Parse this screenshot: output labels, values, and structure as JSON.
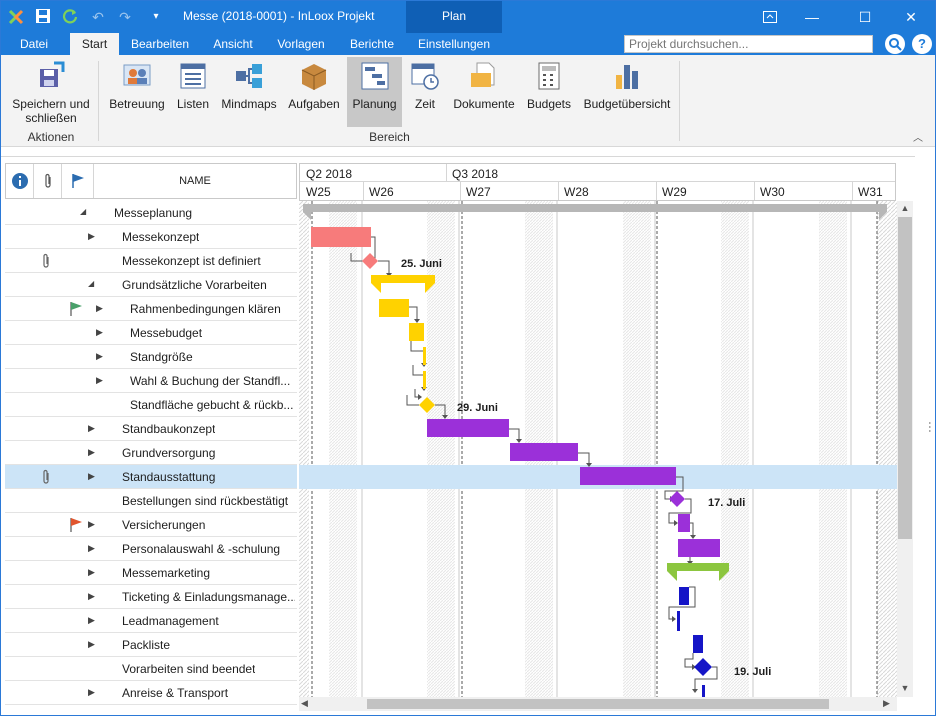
{
  "window": {
    "title": "Messe (2018-0001) - InLoox Projekt",
    "context_tab_group": "Plan"
  },
  "tabs": [
    "Datei",
    "Start",
    "Bearbeiten",
    "Ansicht",
    "Vorlagen",
    "Berichte",
    "Einstellungen"
  ],
  "active_tab": "Start",
  "search": {
    "placeholder": "Projekt durchsuchen..."
  },
  "ribbon": {
    "buttons": {
      "save": "Speichern und schließen",
      "betreuung": "Betreuung",
      "listen": "Listen",
      "mindmaps": "Mindmaps",
      "aufgaben": "Aufgaben",
      "planung": "Planung",
      "zeit": "Zeit",
      "dokumente": "Dokumente",
      "budgets": "Budgets",
      "budgetuebersicht": "Budgetübersicht"
    },
    "groups": {
      "aktionen": "Aktionen",
      "bereich": "Bereich"
    }
  },
  "grid": {
    "name_header": "NAME",
    "rows": [
      {
        "name": "Messeplanung",
        "indent": 0,
        "expander": "expanded",
        "icon": ""
      },
      {
        "name": "Messekonzept",
        "indent": 1,
        "expander": "collapsed",
        "icon": ""
      },
      {
        "name": "Messekonzept ist definiert",
        "indent": 1,
        "expander": "",
        "icon": "paperclip"
      },
      {
        "name": "Grundsätzliche Vorarbeiten",
        "indent": 1,
        "expander": "expanded",
        "icon": ""
      },
      {
        "name": "Rahmenbedingungen klären",
        "indent": 2,
        "expander": "collapsed",
        "icon": "flag-green"
      },
      {
        "name": "Messebudget",
        "indent": 2,
        "expander": "collapsed",
        "icon": ""
      },
      {
        "name": "Standgröße",
        "indent": 2,
        "expander": "collapsed",
        "icon": ""
      },
      {
        "name": "Wahl & Buchung der Standfl...",
        "indent": 2,
        "expander": "collapsed",
        "icon": ""
      },
      {
        "name": "Standfläche gebucht & rückb...",
        "indent": 2,
        "expander": "",
        "icon": ""
      },
      {
        "name": "Standbaukonzept",
        "indent": 1,
        "expander": "collapsed",
        "icon": ""
      },
      {
        "name": "Grundversorgung",
        "indent": 1,
        "expander": "collapsed",
        "icon": ""
      },
      {
        "name": "Standausstattung",
        "indent": 1,
        "expander": "collapsed",
        "icon": "paperclip",
        "selected": true
      },
      {
        "name": "Bestellungen sind rückbestätigt",
        "indent": 1,
        "expander": "",
        "icon": ""
      },
      {
        "name": "Versicherungen",
        "indent": 1,
        "expander": "collapsed",
        "icon": "flag-red"
      },
      {
        "name": "Personalauswahl & -schulung",
        "indent": 1,
        "expander": "collapsed",
        "icon": ""
      },
      {
        "name": "Messemarketing",
        "indent": 1,
        "expander": "collapsed",
        "icon": ""
      },
      {
        "name": "Ticketing & Einladungsmanage...",
        "indent": 1,
        "expander": "collapsed",
        "icon": ""
      },
      {
        "name": "Leadmanagement",
        "indent": 1,
        "expander": "collapsed",
        "icon": ""
      },
      {
        "name": "Packliste",
        "indent": 1,
        "expander": "collapsed",
        "icon": ""
      },
      {
        "name": "Vorarbeiten sind beendet",
        "indent": 1,
        "expander": "",
        "icon": ""
      },
      {
        "name": "Anreise & Transport",
        "indent": 1,
        "expander": "collapsed",
        "icon": ""
      }
    ]
  },
  "gantt": {
    "quarters": [
      "Q2 2018",
      "Q3 2018"
    ],
    "weeks": [
      "W25",
      "W26",
      "W27",
      "W28",
      "W29",
      "W30",
      "W31"
    ],
    "milestone_labels": [
      "25. Juni",
      "29. Juni",
      "17. Juli",
      "19. Juli"
    ],
    "colors": {
      "messekonzept": "#f77b7b",
      "vorarbeiten": "#ffd200",
      "stand": "#9b30d9",
      "versicherungen": "#9b30d9",
      "marketing": "#8cc63f",
      "ticketing": "#1515c7",
      "highlight": "#cce4f7"
    }
  }
}
